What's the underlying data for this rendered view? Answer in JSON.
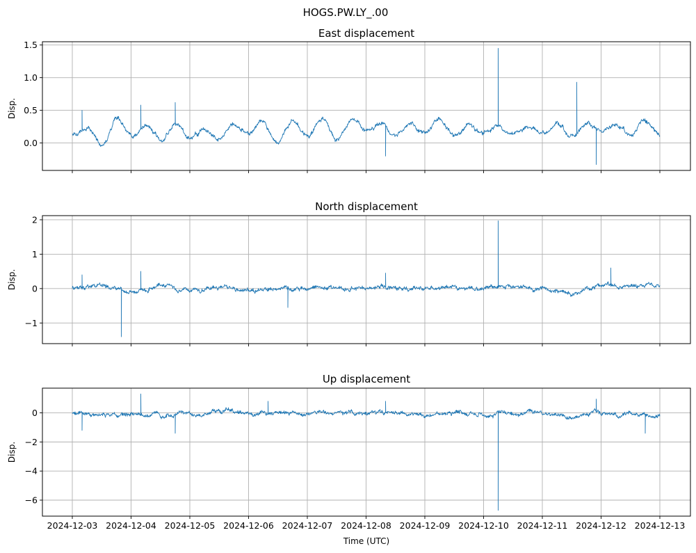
{
  "chart_data": {
    "type": "line",
    "title": "HOGS.PW.LY_.00",
    "xlabel": "Time (UTC)",
    "x_ticks": [
      "2024-12-03",
      "2024-12-04",
      "2024-12-05",
      "2024-12-06",
      "2024-12-07",
      "2024-12-08",
      "2024-12-09",
      "2024-12-10",
      "2024-12-11",
      "2024-12-12",
      "2024-12-13"
    ],
    "xlim": [
      "2024-12-03",
      "2024-12-13"
    ],
    "grid": true,
    "line_color": "#1f77b4",
    "panels": [
      {
        "title": "East displacement",
        "ylabel": "Disp.",
        "ylim": [
          -0.42,
          1.55
        ],
        "y_ticks": [
          0.0,
          0.5,
          1.0,
          1.5
        ],
        "y_tick_labels": [
          "0.0",
          "0.5",
          "1.0",
          "1.5"
        ],
        "show_x_tick_labels": false,
        "series": [
          {
            "x": [
              "2024-12-03T00:00",
              "2024-12-03T06:00",
              "2024-12-03T12:00",
              "2024-12-03T18:00",
              "2024-12-04T00:00",
              "2024-12-04T06:00",
              "2024-12-04T12:00",
              "2024-12-04T18:00",
              "2024-12-05T00:00",
              "2024-12-05T06:00",
              "2024-12-05T12:00",
              "2024-12-05T18:00",
              "2024-12-06T00:00",
              "2024-12-06T06:00",
              "2024-12-06T12:00",
              "2024-12-06T18:00",
              "2024-12-07T00:00",
              "2024-12-07T06:00",
              "2024-12-07T12:00",
              "2024-12-07T18:00",
              "2024-12-08T00:00",
              "2024-12-08T06:00",
              "2024-12-08T12:00",
              "2024-12-08T18:00",
              "2024-12-09T00:00",
              "2024-12-09T06:00",
              "2024-12-09T12:00",
              "2024-12-09T18:00",
              "2024-12-10T00:00",
              "2024-12-10T06:00",
              "2024-12-10T12:00",
              "2024-12-10T18:00",
              "2024-12-11T00:00",
              "2024-12-11T06:00",
              "2024-12-11T12:00",
              "2024-12-11T18:00",
              "2024-12-12T00:00",
              "2024-12-12T06:00",
              "2024-12-12T12:00",
              "2024-12-12T18:00",
              "2024-12-13T00:00"
            ],
            "y": [
              0.12,
              0.25,
              0.0,
              0.38,
              0.1,
              0.25,
              0.05,
              0.3,
              0.1,
              0.2,
              0.05,
              0.25,
              0.15,
              0.35,
              0.0,
              0.35,
              0.12,
              0.38,
              0.05,
              0.35,
              0.15,
              0.32,
              0.1,
              0.3,
              0.15,
              0.35,
              0.1,
              0.28,
              0.15,
              0.25,
              0.12,
              0.25,
              0.15,
              0.28,
              0.1,
              0.3,
              0.2,
              0.25,
              0.15,
              0.3,
              0.12
            ],
            "spikes": [
              {
                "x": "2024-12-03T04:00",
                "y": 0.5
              },
              {
                "x": "2024-12-04T04:00",
                "y": 0.58
              },
              {
                "x": "2024-12-04T18:00",
                "y": 0.62
              },
              {
                "x": "2024-12-08T08:00",
                "y": -0.2
              },
              {
                "x": "2024-12-10T06:00",
                "y": 1.45
              },
              {
                "x": "2024-12-11T14:00",
                "y": 0.93
              },
              {
                "x": "2024-12-11T22:00",
                "y": -0.33
              }
            ]
          }
        ]
      },
      {
        "title": "North displacement",
        "ylabel": "Disp.",
        "ylim": [
          -1.6,
          2.12
        ],
        "y_ticks": [
          -1,
          0,
          1,
          2
        ],
        "y_tick_labels": [
          "−1",
          "0",
          "1",
          "2"
        ],
        "show_x_tick_labels": false,
        "series": [
          {
            "x": [
              "2024-12-03T00:00",
              "2024-12-03T12:00",
              "2024-12-04T00:00",
              "2024-12-04T12:00",
              "2024-12-05T00:00",
              "2024-12-05T12:00",
              "2024-12-06T00:00",
              "2024-12-06T12:00",
              "2024-12-07T00:00",
              "2024-12-07T12:00",
              "2024-12-08T00:00",
              "2024-12-08T12:00",
              "2024-12-09T00:00",
              "2024-12-09T12:00",
              "2024-12-10T00:00",
              "2024-12-10T12:00",
              "2024-12-11T00:00",
              "2024-12-11T12:00",
              "2024-12-12T00:00",
              "2024-12-12T12:00",
              "2024-12-13T00:00"
            ],
            "y": [
              0.0,
              0.08,
              -0.05,
              0.05,
              -0.05,
              0.05,
              -0.03,
              0.0,
              0.05,
              0.0,
              0.03,
              0.05,
              0.0,
              0.05,
              0.0,
              0.05,
              0.0,
              -0.15,
              0.05,
              0.1,
              0.08
            ],
            "spikes": [
              {
                "x": "2024-12-03T04:00",
                "y": 0.4
              },
              {
                "x": "2024-12-03T20:00",
                "y": -1.4
              },
              {
                "x": "2024-12-04T04:00",
                "y": 0.5
              },
              {
                "x": "2024-12-06T16:00",
                "y": -0.55
              },
              {
                "x": "2024-12-08T08:00",
                "y": 0.45
              },
              {
                "x": "2024-12-10T06:00",
                "y": 1.97
              },
              {
                "x": "2024-12-12T04:00",
                "y": 0.6
              }
            ]
          }
        ]
      },
      {
        "title": "Up displacement",
        "ylabel": "Disp.",
        "ylim": [
          -7.1,
          1.7
        ],
        "y_ticks": [
          -6,
          -4,
          -2,
          0
        ],
        "y_tick_labels": [
          "−6",
          "−4",
          "−2",
          "0"
        ],
        "show_x_tick_labels": true,
        "series": [
          {
            "x": [
              "2024-12-03T00:00",
              "2024-12-03T12:00",
              "2024-12-04T00:00",
              "2024-12-04T12:00",
              "2024-12-05T00:00",
              "2024-12-05T12:00",
              "2024-12-06T00:00",
              "2024-12-06T12:00",
              "2024-12-07T00:00",
              "2024-12-07T12:00",
              "2024-12-08T00:00",
              "2024-12-08T12:00",
              "2024-12-09T00:00",
              "2024-12-09T12:00",
              "2024-12-10T00:00",
              "2024-12-10T12:00",
              "2024-12-11T00:00",
              "2024-12-11T12:00",
              "2024-12-12T00:00",
              "2024-12-12T12:00",
              "2024-12-13T00:00"
            ],
            "y": [
              0.0,
              -0.1,
              0.0,
              -0.1,
              0.0,
              0.1,
              -0.1,
              0.0,
              -0.1,
              0.0,
              0.0,
              0.05,
              -0.1,
              0.0,
              -0.1,
              0.0,
              0.0,
              -0.3,
              0.05,
              -0.1,
              -0.15
            ],
            "spikes": [
              {
                "x": "2024-12-03T04:00",
                "y": -1.2
              },
              {
                "x": "2024-12-04T04:00",
                "y": 1.3
              },
              {
                "x": "2024-12-04T18:00",
                "y": -1.4
              },
              {
                "x": "2024-12-06T08:00",
                "y": 0.8
              },
              {
                "x": "2024-12-08T08:00",
                "y": 0.8
              },
              {
                "x": "2024-12-10T06:00",
                "y": -6.7
              },
              {
                "x": "2024-12-11T22:00",
                "y": 0.95
              },
              {
                "x": "2024-12-12T18:00",
                "y": -1.4
              }
            ]
          }
        ]
      }
    ]
  }
}
